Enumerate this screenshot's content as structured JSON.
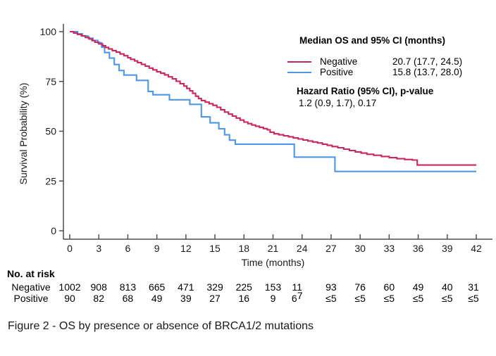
{
  "figure": {
    "caption": "Figure 2 - OS by presence or absence of BRCA1/2 mutations"
  },
  "colors": {
    "negative_line": "#c9265f",
    "positive_line": "#4e96e8",
    "axis": "#4d4d4d",
    "text": "#1a1a1a"
  },
  "chart_data": {
    "type": "line",
    "subtype": "kaplan-meier-step",
    "title": "",
    "xlabel": "Time (months)",
    "ylabel": "Survival Probability (%)",
    "xlim": [
      0,
      42
    ],
    "ylim": [
      0,
      100
    ],
    "xticks": [
      0,
      3,
      6,
      9,
      12,
      15,
      18,
      21,
      24,
      27,
      30,
      33,
      36,
      39,
      42
    ],
    "yticks": [
      0,
      25,
      50,
      75,
      100
    ],
    "grid": false,
    "legend_position": "inside-top-right",
    "series": [
      {
        "name": "Negative",
        "color": "#c9265f",
        "points": [
          [
            0,
            100
          ],
          [
            0.4,
            99.3
          ],
          [
            0.8,
            98.6
          ],
          [
            1.2,
            97.9
          ],
          [
            1.6,
            97.1
          ],
          [
            2,
            96.3
          ],
          [
            2.3,
            95.5
          ],
          [
            2.6,
            94.7
          ],
          [
            3,
            93.8
          ],
          [
            3.4,
            92.9
          ],
          [
            3.7,
            92.1
          ],
          [
            4,
            91.3
          ],
          [
            4.4,
            90.5
          ],
          [
            4.8,
            89.7
          ],
          [
            5.2,
            88.8
          ],
          [
            5.6,
            87.9
          ],
          [
            6,
            86.9
          ],
          [
            6.3,
            86.1
          ],
          [
            6.7,
            85.3
          ],
          [
            7,
            84.5
          ],
          [
            7.4,
            83.6
          ],
          [
            7.8,
            82.7
          ],
          [
            8.2,
            81.7
          ],
          [
            8.6,
            80.8
          ],
          [
            9,
            79.9
          ],
          [
            9.4,
            79.1
          ],
          [
            9.8,
            78.3
          ],
          [
            10.2,
            77.3
          ],
          [
            10.6,
            76.3
          ],
          [
            11,
            75.1
          ],
          [
            11.4,
            73.9
          ],
          [
            11.8,
            72.7
          ],
          [
            12.1,
            71.5
          ],
          [
            12.4,
            70.3
          ],
          [
            12.7,
            69
          ],
          [
            13,
            67.6
          ],
          [
            13.3,
            66.4
          ],
          [
            13.6,
            65.4
          ],
          [
            14,
            64.6
          ],
          [
            14.4,
            63.8
          ],
          [
            14.8,
            63
          ],
          [
            15.2,
            62
          ],
          [
            15.6,
            60.8
          ],
          [
            16,
            59.6
          ],
          [
            16.4,
            58.6
          ],
          [
            16.8,
            57.6
          ],
          [
            17.2,
            56.6
          ],
          [
            17.6,
            55.6
          ],
          [
            18,
            54.6
          ],
          [
            18.4,
            53.8
          ],
          [
            18.8,
            53.1
          ],
          [
            19.2,
            52.5
          ],
          [
            19.6,
            51.9
          ],
          [
            20,
            51.3
          ],
          [
            20.4,
            50.7
          ],
          [
            20.7,
            49.5
          ],
          [
            21.1,
            48.7
          ],
          [
            21.6,
            48.2
          ],
          [
            22.1,
            47.7
          ],
          [
            22.6,
            47.2
          ],
          [
            23.1,
            46.6
          ],
          [
            23.6,
            46.1
          ],
          [
            24.1,
            45.6
          ],
          [
            24.6,
            45.1
          ],
          [
            25.1,
            44.6
          ],
          [
            25.6,
            44.1
          ],
          [
            26.1,
            43.5
          ],
          [
            26.6,
            42.9
          ],
          [
            27.1,
            42.3
          ],
          [
            27.7,
            41.7
          ],
          [
            28.3,
            41
          ],
          [
            28.9,
            40.3
          ],
          [
            29.5,
            39.6
          ],
          [
            30.1,
            39
          ],
          [
            30.7,
            38.4
          ],
          [
            31.4,
            37.9
          ],
          [
            32.2,
            37.3
          ],
          [
            33,
            36.7
          ],
          [
            33.8,
            36.2
          ],
          [
            34.6,
            35.8
          ],
          [
            35.4,
            35.5
          ],
          [
            35.9,
            33
          ],
          [
            42,
            33
          ]
        ]
      },
      {
        "name": "Positive",
        "color": "#4e96e8",
        "points": [
          [
            0,
            100
          ],
          [
            0.8,
            98.9
          ],
          [
            1.3,
            97.8
          ],
          [
            1.9,
            96.7
          ],
          [
            2.4,
            95.6
          ],
          [
            2.9,
            94.4
          ],
          [
            3.3,
            92.2
          ],
          [
            3.6,
            89.5
          ],
          [
            4.1,
            86.7
          ],
          [
            4.6,
            83.5
          ],
          [
            5.1,
            80.5
          ],
          [
            5.6,
            78.2
          ],
          [
            6.9,
            75.5
          ],
          [
            8.1,
            70
          ],
          [
            8.6,
            68.3
          ],
          [
            10.3,
            65.8
          ],
          [
            12.4,
            63.5
          ],
          [
            13.6,
            57.2
          ],
          [
            14.5,
            54.2
          ],
          [
            15.4,
            51.2
          ],
          [
            16,
            48.2
          ],
          [
            16.5,
            45.5
          ],
          [
            17.1,
            43.5
          ],
          [
            23.2,
            37
          ],
          [
            27.4,
            29.8
          ],
          [
            42,
            29.8
          ]
        ]
      }
    ],
    "legend": {
      "title": "Median OS and 95% CI (months)",
      "entries": [
        {
          "label": "Negative",
          "value": "20.7 (17.7, 24.5)"
        },
        {
          "label": "Positive",
          "value": "15.8 (13.7, 28.0)"
        }
      ],
      "hazard_title": "Hazard Ratio (95% CI), p-value",
      "hazard_value": "1.2 (0.9, 1.7), 0.17"
    },
    "risk_table": {
      "title": "No. at risk",
      "rows": [
        {
          "label": "Negative",
          "values": [
            "1002",
            "908",
            "813",
            "665",
            "471",
            "329",
            "225",
            "153",
            "11",
            "93",
            "76",
            "60",
            "49",
            "40",
            "31"
          ]
        },
        {
          "label": "Positive",
          "values": [
            "90",
            "82",
            "68",
            "49",
            "39",
            "27",
            "16",
            "9",
            {
              "base": "6",
              "raised": "7"
            },
            "≤5",
            "≤5",
            "≤5",
            "≤5",
            "≤5",
            "≤5"
          ]
        }
      ]
    }
  }
}
